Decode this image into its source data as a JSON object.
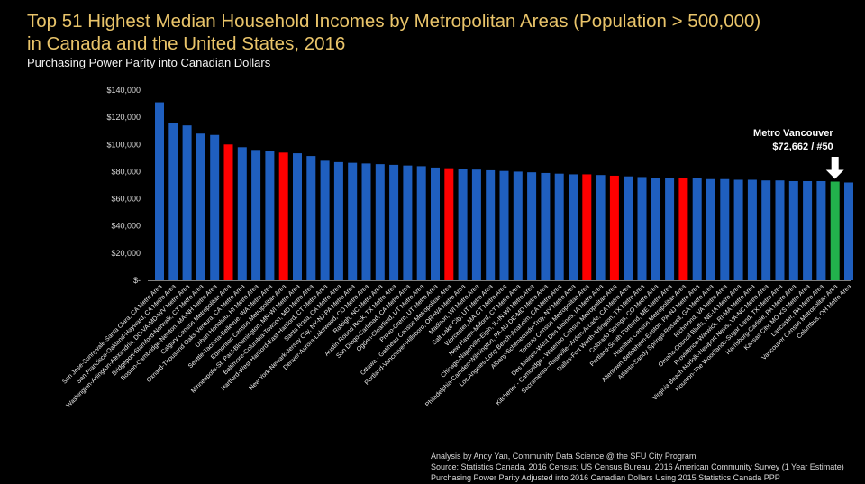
{
  "chart_data": {
    "type": "bar",
    "title": "Top 51 Highest Median Household Incomes by Metropolitan Areas (Population > 500,000)",
    "title_line2": "in Canada and the United States, 2016",
    "subtitle": "Purchasing Power Parity into Canadian Dollars",
    "ylim": [
      0,
      140000
    ],
    "yticks": [
      0,
      20000,
      40000,
      60000,
      80000,
      100000,
      120000,
      140000
    ],
    "ytick_labels": [
      "$-",
      "$20,000",
      "$40,000",
      "$60,000",
      "$80,000",
      "$100,000",
      "$120,000",
      "$140,000"
    ],
    "grid": false,
    "colors": {
      "us": "#1f5fbf",
      "canada": "#ff0000",
      "vancouver": "#22b14c"
    },
    "annotation": {
      "line1": "Metro Vancouver",
      "line2": "$72,662 / #50",
      "target_index": 49
    },
    "categories": [
      "San Jose-Sunnyvale-Santa Clara, CA Metro Area",
      "San Francisco-Oakland-Hayward, CA Metro Area",
      "Washington-Arlington-Alexandria, DC-VA-MD-WV Metro Area",
      "Bridgeport-Stamford-Norwalk, CT Metro Area",
      "Boston-Cambridge-Newton, MA-NH Metro Area",
      "Calgary Census Metropolitan Area",
      "Oxnard-Thousand Oaks-Ventura, CA Metro Area",
      "Urban Honolulu, HI Metro Area",
      "Seattle-Tacoma-Bellevue, WA Metro Area",
      "Edmonton Census Metropolitan Area",
      "Minneapolis-St. Paul-Bloomington, MN-WI Metro Area",
      "Baltimore-Columbia-Towson, MD Metro Area",
      "Hartford-West Hartford-East Hartford, CT Metro Area",
      "Santa Rosa, CA Metro Area",
      "New York-Newark-Jersey City, NY-NJ-PA Metro Area",
      "Denver-Aurora-Lakewood, CO Metro Area",
      "Raleigh, NC Metro Area",
      "Austin-Round Rock, TX Metro Area",
      "San Diego-Carlsbad, CA Metro Area",
      "Ogden-Clearfield, UT Metro Area",
      "Provo-Orem, UT Metro Area",
      "Ottawa - Gatineau Census Metropolitan Area",
      "Portland-Vancouver-Hillsboro, OR-WA Metro Area",
      "Madison, WI Metro Area",
      "Salt Lake City, UT Metro Area",
      "Worcester, MA-CT Metro Area",
      "New Haven-Milford, CT Metro Area",
      "Chicago-Naperville-Elgin, IL-IN-WI Metro Area",
      "Philadelphia-Camden-Wilmington, PA-NJ-DE-MD Metro Area",
      "Los Angeles-Long Beach-Anaheim, CA Metro Area",
      "Albany-Schenectady-Troy, NY Metro Area",
      "Toronto Census Metropolitan Area",
      "Des Moines-West Des Moines, IA Metro Area",
      "Kitchener - Cambridge - Waterloo Census Metropolitan Area",
      "Sacramento--Roseville--Arden-Arcade, CA Metro Area",
      "Dallas-Fort Worth-Arlington, TX Metro Area",
      "Colorado Springs, CO Metro Area",
      "Portland-South Portland, ME Metro Area",
      "Hamilton Census Metropolitan Area",
      "Allentown-Bethlehem-Easton, PA-NJ Metro Area",
      "Atlanta-Sandy Springs-Roswell, GA Metro Area",
      "Richmond, VA Metro Area",
      "Omaha-Council Bluffs, NE-IA Metro Area",
      "Providence-Warwick, RI-MA Metro Area",
      "Virginia Beach-Norfolk-Newport News, VA-NC Metro Area",
      "Houston-The Woodlands-Sugar Land, TX Metro Area",
      "Harrisburg-Carlisle, PA Metro Area",
      "Kansas City, MO-KS Metro Area",
      "Lancaster, PA Metro Area",
      "Vancouver Census Metropolitan Area",
      "Columbus, OH Metro Area"
    ],
    "values": [
      131000,
      115500,
      114000,
      108000,
      107000,
      100000,
      98000,
      96000,
      95500,
      94000,
      93500,
      91500,
      88000,
      87000,
      86500,
      86000,
      85500,
      85000,
      84500,
      84000,
      83000,
      82500,
      82000,
      81500,
      81000,
      80500,
      80000,
      79500,
      79000,
      78500,
      78000,
      78000,
      77500,
      77000,
      76500,
      76000,
      75500,
      75500,
      75000,
      75000,
      74500,
      74500,
      74000,
      74000,
      73500,
      73500,
      73000,
      73000,
      73000,
      72662,
      72000
    ],
    "bar_types": [
      "us",
      "us",
      "us",
      "us",
      "us",
      "canada",
      "us",
      "us",
      "us",
      "canada",
      "us",
      "us",
      "us",
      "us",
      "us",
      "us",
      "us",
      "us",
      "us",
      "us",
      "us",
      "canada",
      "us",
      "us",
      "us",
      "us",
      "us",
      "us",
      "us",
      "us",
      "us",
      "canada",
      "us",
      "canada",
      "us",
      "us",
      "us",
      "us",
      "canada",
      "us",
      "us",
      "us",
      "us",
      "us",
      "us",
      "us",
      "us",
      "us",
      "us",
      "vancouver",
      "us"
    ]
  },
  "footer": {
    "line1": "Analysis by Andy Yan, Community Data Science @ the SFU City Program",
    "line2": "Source: Statistics Canada, 2016 Census; US Census Bureau, 2016 American Community Survey (1 Year Estimate)",
    "line3": "Purchasing Power Parity Adjusted into 2016 Canadian Dollars Using 2015 Statistics Canada PPP"
  }
}
